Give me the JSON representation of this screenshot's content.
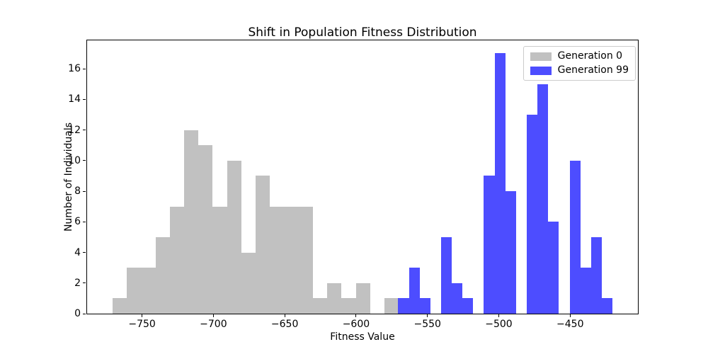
{
  "chart_data": {
    "type": "histogram",
    "title": "Shift in Population Fitness Distribution",
    "xlabel": "Fitness Value",
    "ylabel": "Number of Individuals",
    "xlim": [
      -788.5,
      -402.5
    ],
    "ylim": [
      0,
      17.85
    ],
    "x_ticks": [
      -750,
      -700,
      -650,
      -600,
      -550,
      -500,
      -450
    ],
    "y_ticks": [
      0,
      2,
      4,
      6,
      8,
      10,
      12,
      14,
      16
    ],
    "grid": false,
    "legend_position": "upper-right",
    "series": [
      {
        "name": "Generation 0",
        "color": "#c1c1c1",
        "bin_start": -770.7,
        "bin_width": 10.03,
        "counts": [
          1,
          3,
          3,
          5,
          7,
          12,
          11,
          7,
          10,
          4,
          9,
          7,
          7,
          7,
          1,
          2,
          1,
          2,
          0,
          1
        ]
      },
      {
        "name": "Generation 99",
        "color": "#4d4dff",
        "bin_start": -570.5,
        "bin_width": 7.51,
        "counts": [
          1,
          3,
          1,
          0,
          5,
          2,
          1,
          0,
          9,
          17,
          8,
          0,
          13,
          15,
          6,
          0,
          10,
          3,
          5,
          1
        ]
      }
    ]
  }
}
